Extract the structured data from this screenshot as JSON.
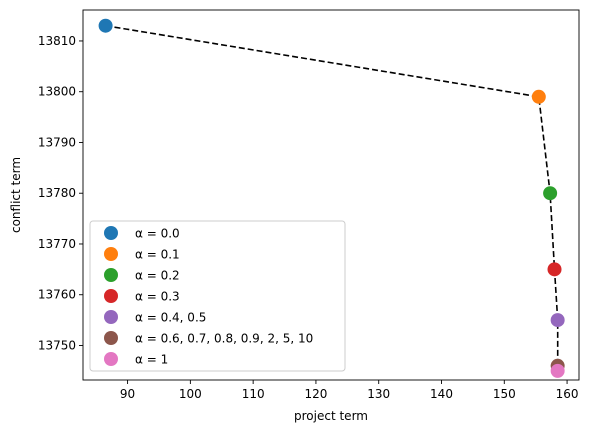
{
  "chart_data": {
    "type": "scatter",
    "title": "",
    "xlabel": "project term",
    "ylabel": "conflict term",
    "xlim": [
      82.9,
      161.9
    ],
    "ylim": [
      13743.2,
      13816.1
    ],
    "xticks": [
      90,
      100,
      110,
      120,
      130,
      140,
      150,
      160
    ],
    "yticks": [
      13750,
      13760,
      13770,
      13780,
      13790,
      13800,
      13810
    ],
    "grid": false,
    "legend_position": "lower-left",
    "connecting_line": {
      "style": "dashed",
      "color": "#000000"
    },
    "series": [
      {
        "name": "α = 0.0",
        "color": "#1f77b4",
        "x": [
          86.5
        ],
        "y": [
          13813
        ]
      },
      {
        "name": "α = 0.1",
        "color": "#ff7f0e",
        "x": [
          155.5
        ],
        "y": [
          13799
        ]
      },
      {
        "name": "α = 0.2",
        "color": "#2ca02c",
        "x": [
          157.3
        ],
        "y": [
          13780
        ]
      },
      {
        "name": "α = 0.3",
        "color": "#d62728",
        "x": [
          158.0
        ],
        "y": [
          13765
        ]
      },
      {
        "name": "α = 0.4, 0.5",
        "color": "#9467bd",
        "x": [
          158.5
        ],
        "y": [
          13755
        ]
      },
      {
        "name": "α = 0.6, 0.7, 0.8, 0.9, 2, 5, 10",
        "color": "#8c564b",
        "x": [
          158.5
        ],
        "y": [
          13746
        ]
      },
      {
        "name": "α = 1",
        "color": "#e377c2",
        "x": [
          158.5
        ],
        "y": [
          13745
        ]
      }
    ]
  }
}
